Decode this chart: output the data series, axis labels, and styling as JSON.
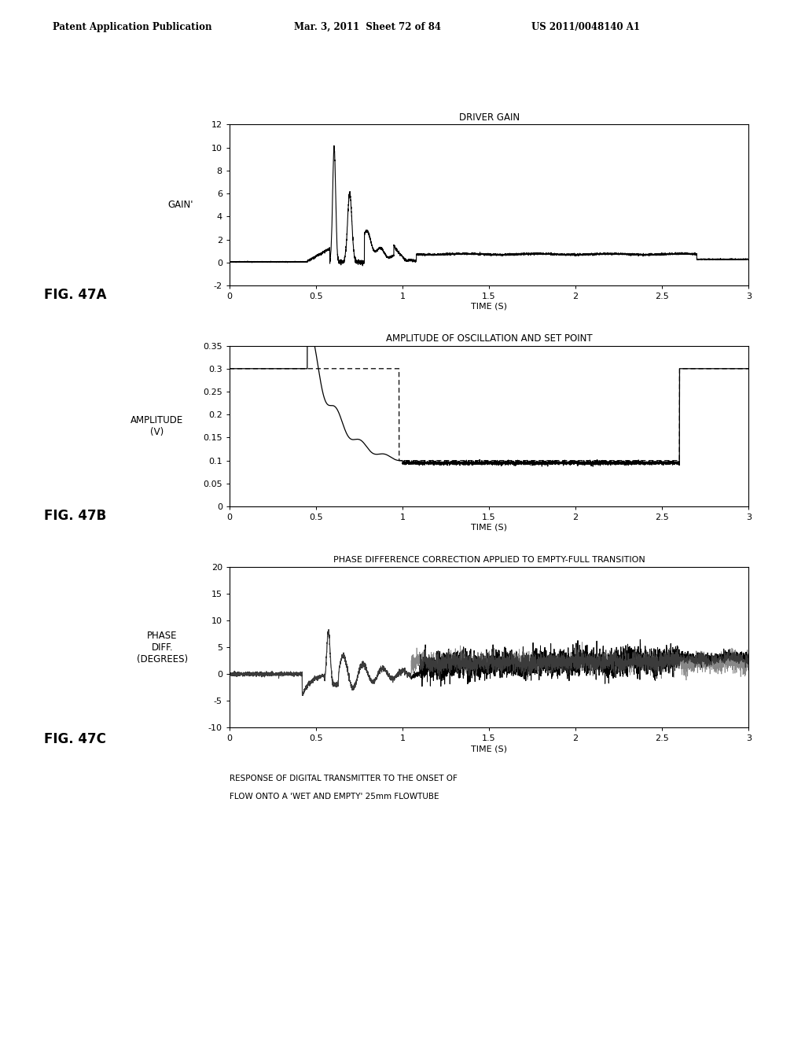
{
  "header_left": "Patent Application Publication",
  "header_mid": "Mar. 3, 2011  Sheet 72 of 84",
  "header_right": "US 2011/0048140 A1",
  "fig_labels": [
    "FIG. 47A",
    "FIG. 47B",
    "FIG. 47C"
  ],
  "caption_line1": "RESPONSE OF DIGITAL TRANSMITTER TO THE ONSET OF",
  "caption_line2": "FLOW ONTO A 'WET AND EMPTY' 25mm FLOWTUBE",
  "plot_A": {
    "title": "DRIVER GAIN",
    "ylabel": "GAIN'",
    "xlabel": "TIME (S)",
    "ylim": [
      -2,
      12
    ],
    "yticks": [
      -2,
      0,
      2,
      4,
      6,
      8,
      10,
      12
    ],
    "xlim": [
      0,
      3
    ],
    "xticks": [
      0,
      0.5,
      1,
      1.5,
      2,
      2.5,
      3
    ]
  },
  "plot_B": {
    "title": "AMPLITUDE OF OSCILLATION AND SET POINT",
    "ylabel": "AMPLITUDE\n(V)",
    "xlabel": "TIME (S)",
    "ylim": [
      0,
      0.35
    ],
    "yticks": [
      0,
      0.05,
      0.1,
      0.15,
      0.2,
      0.25,
      0.3,
      0.35
    ],
    "xlim": [
      0,
      3
    ],
    "xticks": [
      0,
      0.5,
      1,
      1.5,
      2,
      2.5,
      3
    ]
  },
  "plot_C": {
    "title": "PHASE DIFFERENCE CORRECTION APPLIED TO EMPTY-FULL TRANSITION",
    "ylabel": "PHASE\nDIFF.\n(DEGREES)",
    "xlabel": "TIME (S)",
    "ylim": [
      -10,
      20
    ],
    "yticks": [
      -10,
      -5,
      0,
      5,
      10,
      15,
      20
    ],
    "xlim": [
      0,
      3
    ],
    "xticks": [
      0,
      0.5,
      1,
      1.5,
      2,
      2.5,
      3
    ]
  },
  "background_color": "#ffffff",
  "line_color": "#000000"
}
